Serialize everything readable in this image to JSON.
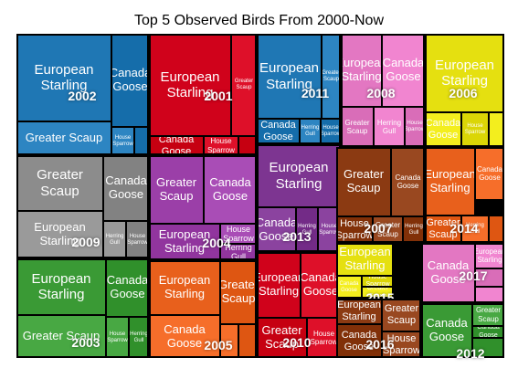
{
  "chart_data": {
    "type": "treemap",
    "title": "Top 5 Observed Birds From 2000-Now",
    "groups": [
      {
        "year": "2002",
        "color": "#1f77b4",
        "cells": [
          {
            "label": "European Starling",
            "value": 33
          },
          {
            "label": "Greater Scaup",
            "value": 16
          },
          {
            "label": "Canada Goose",
            "value": 16
          },
          {
            "label": "House Sparrow",
            "value": 4
          },
          {
            "label": "",
            "value": 3
          }
        ]
      },
      {
        "year": "2001",
        "color": "#d0021b",
        "cells": [
          {
            "label": "European Starling",
            "value": 41
          },
          {
            "label": "Greater Scaup",
            "value": 16
          },
          {
            "label": "Canada Goose",
            "value": 6
          },
          {
            "label": "House Sparrow",
            "value": 4
          },
          {
            "label": "",
            "value": 2
          }
        ]
      },
      {
        "year": "2011",
        "color": "#1f77b4",
        "cells": [
          {
            "label": "European Starling",
            "value": 30
          },
          {
            "label": "Greater Scaup",
            "value": 8
          },
          {
            "label": "Canada Goose",
            "value": 8
          },
          {
            "label": "Herring Gull",
            "value": 4
          },
          {
            "label": "House Sparrow",
            "value": 4
          }
        ]
      },
      {
        "year": "2008",
        "color": "#e377c2",
        "cells": [
          {
            "label": "European Starling",
            "value": 18
          },
          {
            "label": "Canada Goose",
            "value": 10
          },
          {
            "label": "Greater Scaup",
            "value": 6
          },
          {
            "label": "Herring Gull",
            "value": 5
          },
          {
            "label": "House Sparrow",
            "value": 3
          }
        ]
      },
      {
        "year": "2006",
        "color": "#e5e010",
        "cells": [
          {
            "label": "European Starling",
            "value": 30
          },
          {
            "label": "Canada Goose",
            "value": 7
          },
          {
            "label": "House Sparrow",
            "value": 6
          },
          {
            "label": "",
            "value": 4
          }
        ]
      },
      {
        "year": "2009",
        "color": "#8c8c8c",
        "cells": [
          {
            "label": "Greater Scaup",
            "value": 26
          },
          {
            "label": "European Starling",
            "value": 24
          },
          {
            "label": "Canada Goose",
            "value": 12
          },
          {
            "label": "Herring Gull",
            "value": 4
          },
          {
            "label": "House Sparrow",
            "value": 4
          }
        ]
      },
      {
        "year": "2004",
        "color": "#9b3fa8",
        "cells": [
          {
            "label": "Greater Scaup",
            "value": 17
          },
          {
            "label": "Canada Goose",
            "value": 15
          },
          {
            "label": "European Starling",
            "value": 18
          },
          {
            "label": "House Sparrow",
            "value": 4
          },
          {
            "label": "Herring Gull",
            "value": 2
          }
        ]
      },
      {
        "year": "2013",
        "color": "#7d3591",
        "cells": [
          {
            "label": "European Starling",
            "value": 30
          },
          {
            "label": "Canada Goose",
            "value": 10
          },
          {
            "label": "Herring Gull",
            "value": 3
          },
          {
            "label": "House Sparrow",
            "value": 3
          }
        ]
      },
      {
        "year": "2007",
        "color": "#8b3a12",
        "cells": [
          {
            "label": "Greater Scaup",
            "value": 26
          },
          {
            "label": "Canada Goose",
            "value": 11
          },
          {
            "label": "House Sparrow",
            "value": 6
          },
          {
            "label": "Greater Scaup",
            "value": 5
          },
          {
            "label": "Herring Gull",
            "value": 3
          }
        ]
      },
      {
        "year": "2014",
        "color": "#e8601c",
        "cells": [
          {
            "label": "European Starling",
            "value": 17
          },
          {
            "label": "Canada Goose",
            "value": 8
          },
          {
            "label": "Greater Scaup",
            "value": 8
          },
          {
            "label": "Herring Gull",
            "value": 6
          },
          {
            "label": "",
            "value": 2
          }
        ]
      },
      {
        "year": "2003",
        "color": "#3a9a35",
        "cells": [
          {
            "label": "European Starling",
            "value": 35
          },
          {
            "label": "Greater Scaup",
            "value": 25
          },
          {
            "label": "Canada Goose",
            "value": 13
          },
          {
            "label": "House Sparrow",
            "value": 4
          },
          {
            "label": "Herring Gull",
            "value": 4
          }
        ]
      },
      {
        "year": "2005",
        "color": "#e8601c",
        "cells": [
          {
            "label": "European Starling",
            "value": 25
          },
          {
            "label": "Canada Goose",
            "value": 20
          },
          {
            "label": "Greater Scaup",
            "value": 9
          },
          {
            "label": "",
            "value": 4
          },
          {
            "label": "",
            "value": 2
          }
        ]
      },
      {
        "year": "2010",
        "color": "#d0021b",
        "cells": [
          {
            "label": "European Starling",
            "value": 18
          },
          {
            "label": "Canada Goose",
            "value": 15
          },
          {
            "label": "Greater Scaup",
            "value": 7
          },
          {
            "label": "House Sparrow",
            "value": 4
          }
        ]
      },
      {
        "year": "2015",
        "color": "#e5e010",
        "cells": [
          {
            "label": "European Starling",
            "value": 14
          },
          {
            "label": "Canada Goose",
            "value": 7
          },
          {
            "label": "House Sparrow",
            "value": 4
          },
          {
            "label": "Greater Scaup",
            "value": 4
          }
        ]
      },
      {
        "year": "2017",
        "color": "#e377c2",
        "cells": [
          {
            "label": "Canada Goose",
            "value": 17
          },
          {
            "label": "European Starling",
            "value": 6
          },
          {
            "label": "",
            "value": 4
          },
          {
            "label": "",
            "value": 3
          }
        ]
      },
      {
        "year": "2016",
        "color": "#8b3a12",
        "cells": [
          {
            "label": "European Starling",
            "value": 9
          },
          {
            "label": "Greater Scaup",
            "value": 4
          },
          {
            "label": "Canada Goose",
            "value": 7
          },
          {
            "label": "House Sparrow",
            "value": 5
          }
        ]
      },
      {
        "year": "2012",
        "color": "#3a9a35",
        "cells": [
          {
            "label": "Canada Goose",
            "value": 15
          },
          {
            "label": "Greater Scaup",
            "value": 5
          },
          {
            "label": "Canada Goose",
            "value": 5
          },
          {
            "label": "European Starling",
            "value": 5
          },
          {
            "label": "",
            "value": 2
          }
        ]
      }
    ]
  }
}
